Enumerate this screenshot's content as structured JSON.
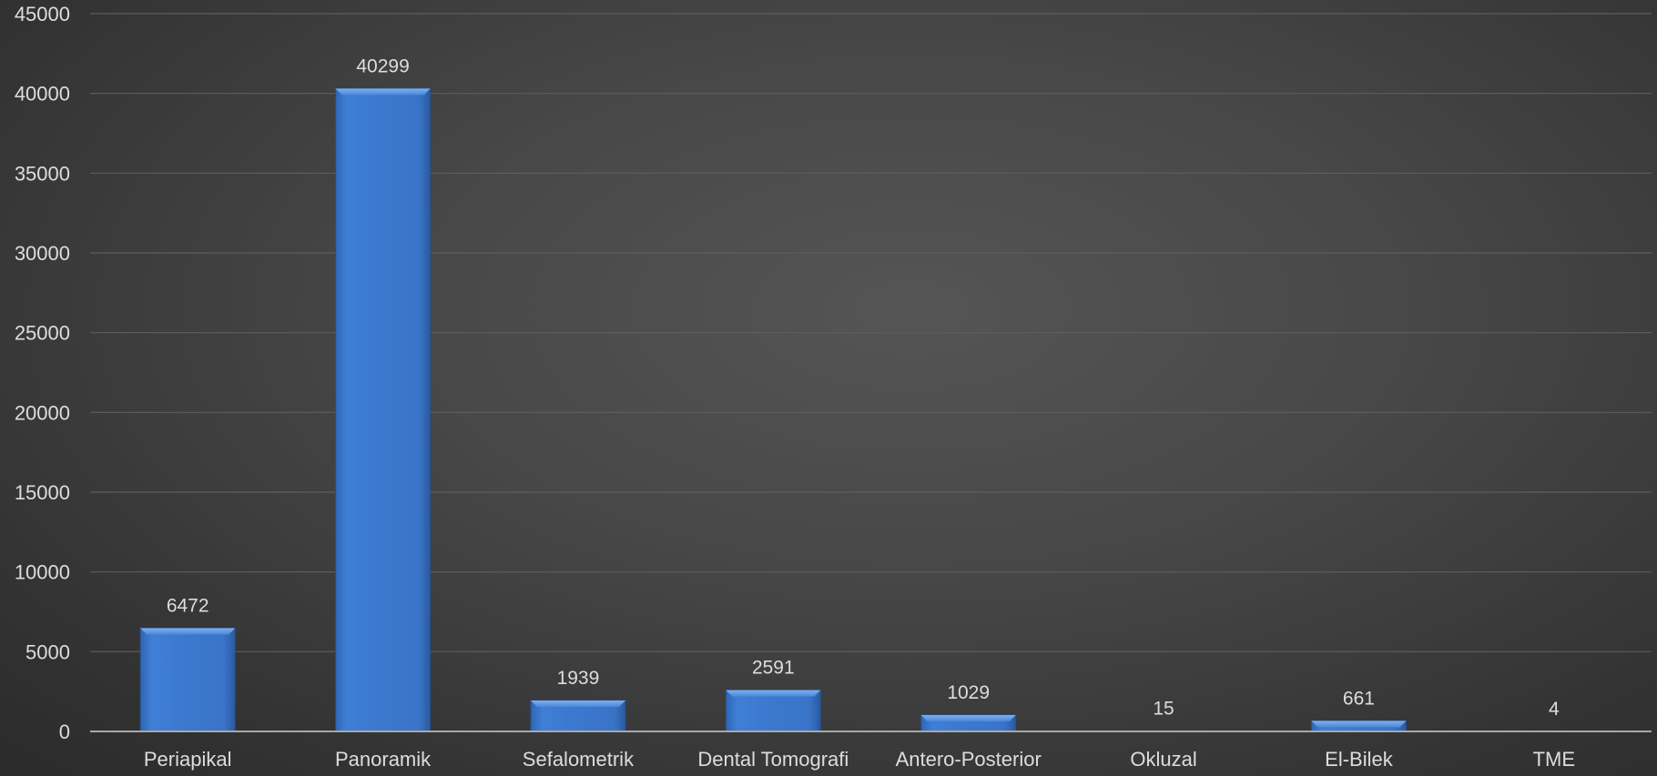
{
  "chart_data": {
    "type": "bar",
    "title": "",
    "xlabel": "",
    "ylabel": "",
    "categories": [
      "Periapikal",
      "Panoramik",
      "Sefalometrik",
      "Dental Tomografi",
      "Antero-Posterior",
      "Okluzal",
      "El-Bilek",
      "TME"
    ],
    "values": [
      6472,
      40299,
      1939,
      2591,
      1029,
      15,
      661,
      4
    ],
    "data_labels": [
      "6472",
      "40299",
      "1939",
      "2591",
      "1029",
      "15",
      "661",
      "4"
    ],
    "ylim": [
      0,
      45000
    ],
    "yticks": [
      "0",
      "5000",
      "10000",
      "15000",
      "20000",
      "25000",
      "30000",
      "35000",
      "40000",
      "45000"
    ],
    "grid": true,
    "legend": "none",
    "colors": {
      "bar": "#3a78cf",
      "bar_highlight": "#5b95e0",
      "bar_shadow": "#2a5aa0",
      "grid": "#5e5e5e",
      "axis": "#a8a8a8",
      "text": "#dddddd"
    }
  }
}
